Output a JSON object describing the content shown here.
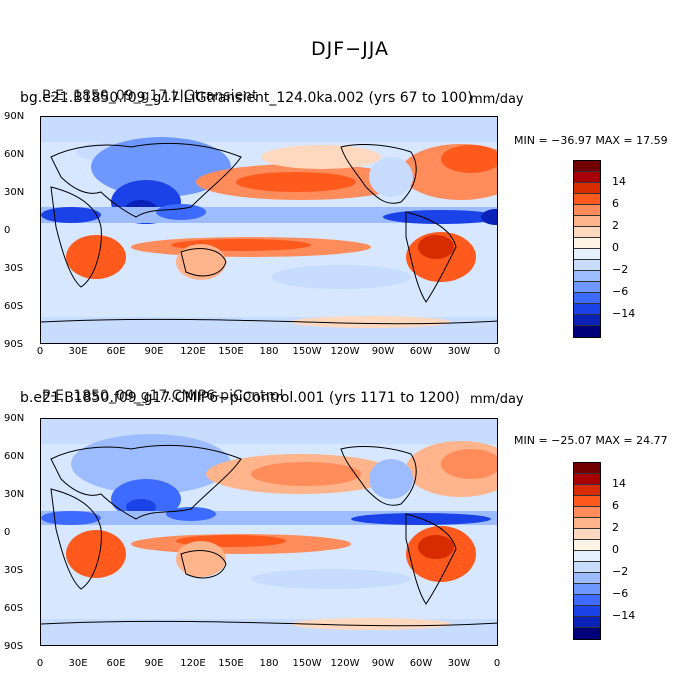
{
  "figure": {
    "title": "DJF−JJA"
  },
  "panels": [
    {
      "over_title": "P-E: 1850_09_g17.LIGtransient",
      "title": "bg.e21.B1850.f09_g17.LIGtransient_124.0ka.002 (yrs 67 to 100)",
      "units": "mm/day",
      "stats": "MIN = −36.97  MAX =  17.59"
    },
    {
      "over_title": "P-E: 1850_09_g17.CMIP6-piControl",
      "title": "b.e21.B1850.f09_g17.CMIP6−piControl.001 (yrs 1171 to 1200)",
      "units": "mm/day",
      "stats": "MIN = −25.07  MAX =  24.77"
    }
  ],
  "axes": {
    "lat_labels": [
      "90N",
      "60N",
      "30N",
      "0",
      "30S",
      "60S",
      "90S"
    ],
    "lon_labels": [
      "0",
      "30E",
      "60E",
      "90E",
      "120E",
      "150E",
      "180",
      "150W",
      "120W",
      "90W",
      "60W",
      "30W",
      "0"
    ]
  },
  "colorbar": {
    "colors": [
      "#730000",
      "#a80000",
      "#d62c00",
      "#ff5a1e",
      "#ff8c5a",
      "#ffb48c",
      "#ffd9bf",
      "#fff3e3",
      "#e6f1ff",
      "#c7dcff",
      "#9dbcff",
      "#6f98ff",
      "#3d6bff",
      "#1a42e6",
      "#0a22b8",
      "#00007a"
    ],
    "labels": [
      "14",
      "6",
      "2",
      "0",
      "−2",
      "−6",
      "−14"
    ]
  },
  "map_colors": {
    "background": "#d6e7ff",
    "coast": "#000000"
  }
}
